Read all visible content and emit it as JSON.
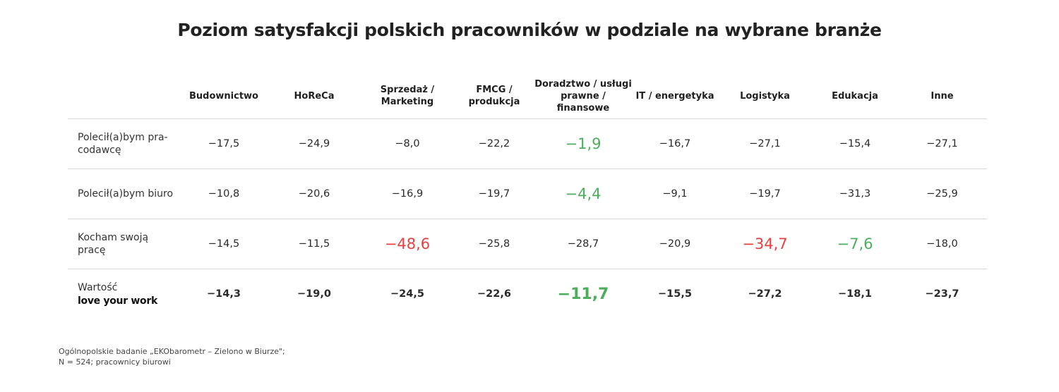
{
  "title": "Poziom satysfakcji polskich pracowników w podziale na wybrane branże",
  "colors": {
    "positive": "#4cae5b",
    "negative": "#ea3f3f",
    "divider": "#d9d9d9"
  },
  "chart_data": {
    "type": "table",
    "title": "Poziom satysfakcji polskich pracowników w podziale na wybrane branże",
    "columns": [
      "Budownictwo",
      "HoReCa",
      "Sprzedaż / Marketing",
      "FMCG / produkcja",
      "Doradztwo / usługi prawne / finansowe",
      "IT / energetyka",
      "Logistyka",
      "Edukacja",
      "Inne"
    ],
    "rows": [
      {
        "label": "Polecił(a)bym pra-codawcę",
        "values": [
          "-17,5",
          "-24,9",
          "-8,0",
          "-22,2",
          "-1,9",
          "-16,7",
          "-27,1",
          "-15,4",
          "-27,1"
        ],
        "highlight": [
          "",
          "",
          "",
          "",
          "positive",
          "",
          "",
          "",
          ""
        ]
      },
      {
        "label": "Polecił(a)bym biuro",
        "values": [
          "-10,8",
          "-20,6",
          "-16,9",
          "-19,7",
          "-4,4",
          "-9,1",
          "-19,7",
          "-31,3",
          "-25,9"
        ],
        "highlight": [
          "",
          "",
          "",
          "",
          "positive",
          "",
          "",
          "",
          ""
        ]
      },
      {
        "label": "Kocham swoją pracę",
        "values": [
          "-14,5",
          "-11,5",
          "-48,6",
          "-25,8",
          "-28,7",
          "-20,9",
          "-34,7",
          "-7,6",
          "-18,0"
        ],
        "highlight": [
          "",
          "",
          "negative",
          "",
          "",
          "",
          "negative",
          "positive",
          ""
        ]
      },
      {
        "label": "Wartość",
        "brand": "love your work",
        "values": [
          "-14,3",
          "-19,0",
          "-24,5",
          "-22,6",
          "-11,7",
          "-15,5",
          "-27,2",
          "-18,1",
          "-23,7"
        ],
        "highlight": [
          "",
          "",
          "",
          "",
          "positive",
          "",
          "",
          "",
          ""
        ]
      }
    ]
  },
  "footnote": {
    "line1": "Ogólnopolskie badanie „EKObarometr – Zielono w Biurze\";",
    "line2": "N = 524; pracownicy biurowi"
  }
}
